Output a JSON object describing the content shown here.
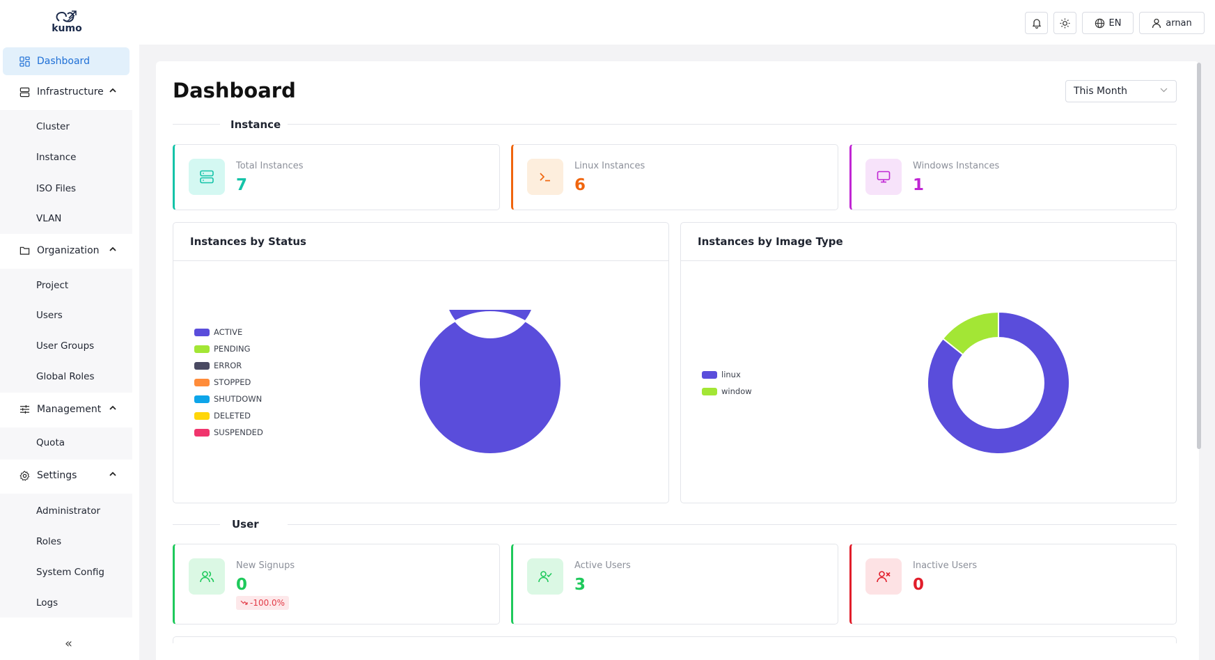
{
  "app": {
    "logo_text": "kumo"
  },
  "topbar": {
    "language": "EN",
    "user": "arnan"
  },
  "sidebar": {
    "dashboard": "Dashboard",
    "infrastructure": {
      "label": "Infrastructure",
      "items": [
        "Cluster",
        "Instance",
        "ISO Files",
        "VLAN"
      ]
    },
    "organization": {
      "label": "Organization",
      "items": [
        "Project",
        "Users",
        "User Groups",
        "Global Roles"
      ]
    },
    "management": {
      "label": "Management",
      "items": [
        "Quota"
      ]
    },
    "settings": {
      "label": "Settings",
      "items": [
        "Administrator",
        "Roles",
        "System Config",
        "Logs"
      ]
    },
    "collapse": "«"
  },
  "page": {
    "title": "Dashboard",
    "period": "This Month"
  },
  "instance_section": {
    "label": "Instance",
    "stats": [
      {
        "label": "Total Instances",
        "value": "7",
        "color": "#14c3a8",
        "icon_bg": "#d4f8f2",
        "icon": "server-icon"
      },
      {
        "label": "Linux Instances",
        "value": "6",
        "color": "#f0650e",
        "icon_bg": "#fdeedd",
        "icon": "terminal-icon"
      },
      {
        "label": "Windows Instances",
        "value": "1",
        "color": "#c026d3",
        "icon_bg": "#f7e3fa",
        "icon": "monitor-icon"
      }
    ]
  },
  "charts": {
    "status": {
      "title": "Instances by Status",
      "legend": [
        {
          "label": "ACTIVE",
          "color": "#5a4ddb"
        },
        {
          "label": "PENDING",
          "color": "#a3e635"
        },
        {
          "label": "ERROR",
          "color": "#4a4a62"
        },
        {
          "label": "STOPPED",
          "color": "#ff8c3a"
        },
        {
          "label": "SHUTDOWN",
          "color": "#0ea5e9"
        },
        {
          "label": "DELETED",
          "color": "#ffd60a"
        },
        {
          "label": "SUSPENDED",
          "color": "#f0356d"
        }
      ]
    },
    "image_type": {
      "title": "Instances by Image Type",
      "legend": [
        {
          "label": "linux",
          "color": "#5a4ddb"
        },
        {
          "label": "window",
          "color": "#a3e635"
        }
      ]
    }
  },
  "chart_data": [
    {
      "type": "pie",
      "title": "Instances by Status",
      "categories": [
        "ACTIVE",
        "PENDING",
        "ERROR",
        "STOPPED",
        "SHUTDOWN",
        "DELETED",
        "SUSPENDED"
      ],
      "values": [
        7,
        0,
        0,
        0,
        0,
        0,
        0
      ],
      "colors": [
        "#5a4ddb",
        "#a3e635",
        "#4a4a62",
        "#ff8c3a",
        "#0ea5e9",
        "#ffd60a",
        "#f0356d"
      ],
      "legend": "left"
    },
    {
      "type": "pie",
      "title": "Instances by Image Type",
      "categories": [
        "linux",
        "window"
      ],
      "values": [
        6,
        1
      ],
      "colors": [
        "#5a4ddb",
        "#a3e635"
      ],
      "legend": "left"
    }
  ],
  "user_section": {
    "label": "User",
    "stats": [
      {
        "label": "New Signups",
        "value": "0",
        "color": "#1ec95b",
        "icon_bg": "#dbf8e4",
        "icon": "users-icon",
        "change": "-100.0%"
      },
      {
        "label": "Active Users",
        "value": "3",
        "color": "#1ec95b",
        "icon_bg": "#dbf8e4",
        "icon": "user-check-icon"
      },
      {
        "label": "Inactive Users",
        "value": "0",
        "color": "#e11d2a",
        "icon_bg": "#fde2e4",
        "icon": "user-x-icon"
      }
    ]
  }
}
